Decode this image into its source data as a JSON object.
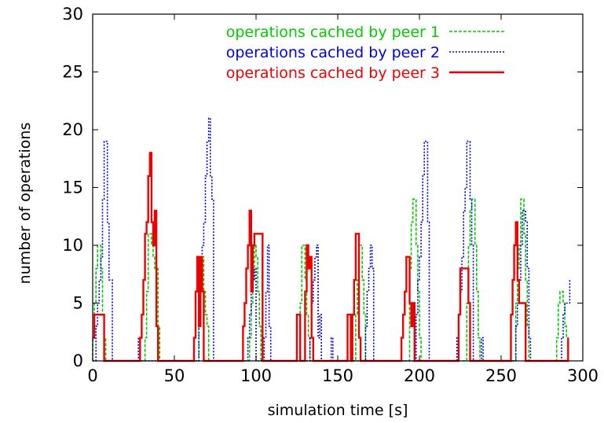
{
  "chart_data": {
    "type": "line",
    "xlabel": "simulation time [s]",
    "ylabel": "number of operations",
    "xlim": [
      0,
      300
    ],
    "ylim": [
      0,
      30
    ],
    "xticks": [
      "0",
      "50",
      "100",
      "150",
      "200",
      "250",
      "300"
    ],
    "yticks": [
      "0",
      "5",
      "10",
      "15",
      "20",
      "25",
      "30"
    ],
    "legend_position": "top-right",
    "series": [
      {
        "name": "operations cached by peer 1",
        "color": "#00cc00",
        "style": "dashed",
        "points": [
          [
            0,
            0
          ],
          [
            0,
            2
          ],
          [
            1,
            5
          ],
          [
            2,
            8
          ],
          [
            3,
            10
          ],
          [
            4,
            10
          ],
          [
            5,
            8
          ],
          [
            6,
            4
          ],
          [
            7,
            2
          ],
          [
            8,
            0
          ],
          [
            31,
            0
          ],
          [
            32,
            2
          ],
          [
            33,
            6
          ],
          [
            34,
            11
          ],
          [
            35,
            11
          ],
          [
            36,
            10
          ],
          [
            37,
            9
          ],
          [
            38,
            8
          ],
          [
            39,
            8
          ],
          [
            40,
            3
          ],
          [
            41,
            0
          ],
          [
            64,
            0
          ],
          [
            65,
            4
          ],
          [
            66,
            7
          ],
          [
            67,
            9
          ],
          [
            68,
            6
          ],
          [
            69,
            4
          ],
          [
            70,
            3
          ],
          [
            71,
            0
          ],
          [
            95,
            0
          ],
          [
            96,
            2
          ],
          [
            97,
            5
          ],
          [
            98,
            7
          ],
          [
            99,
            10
          ],
          [
            100,
            9
          ],
          [
            101,
            6
          ],
          [
            102,
            3
          ],
          [
            103,
            0
          ],
          [
            126,
            0
          ],
          [
            127,
            5
          ],
          [
            128,
            10
          ],
          [
            129,
            10
          ],
          [
            130,
            7
          ],
          [
            131,
            4
          ],
          [
            132,
            2
          ],
          [
            133,
            0
          ],
          [
            160,
            0
          ],
          [
            161,
            4
          ],
          [
            162,
            7
          ],
          [
            163,
            10
          ],
          [
            164,
            10
          ],
          [
            165,
            7
          ],
          [
            166,
            4
          ],
          [
            167,
            0
          ],
          [
            193,
            0
          ],
          [
            194,
            8
          ],
          [
            195,
            12
          ],
          [
            196,
            14
          ],
          [
            197,
            14
          ],
          [
            198,
            10
          ],
          [
            199,
            6
          ],
          [
            200,
            2
          ],
          [
            201,
            0
          ],
          [
            228,
            0
          ],
          [
            229,
            5
          ],
          [
            230,
            10
          ],
          [
            231,
            13
          ],
          [
            232,
            14
          ],
          [
            233,
            14
          ],
          [
            234,
            10
          ],
          [
            235,
            6
          ],
          [
            236,
            2
          ],
          [
            237,
            0
          ],
          [
            258,
            0
          ],
          [
            259,
            5
          ],
          [
            260,
            8
          ],
          [
            261,
            10
          ],
          [
            262,
            14
          ],
          [
            263,
            14
          ],
          [
            264,
            11
          ],
          [
            265,
            7
          ],
          [
            266,
            3
          ],
          [
            267,
            0
          ],
          [
            283,
            0
          ],
          [
            284,
            2
          ],
          [
            285,
            5
          ],
          [
            286,
            6
          ],
          [
            287,
            6
          ],
          [
            288,
            5
          ],
          [
            289,
            3
          ],
          [
            290,
            2
          ],
          [
            291,
            0
          ]
        ]
      },
      {
        "name": "operations cached by peer 2",
        "color": "#0000dd",
        "style": "dotted",
        "points": [
          [
            0,
            0
          ],
          [
            1,
            0
          ],
          [
            2,
            3
          ],
          [
            3,
            5
          ],
          [
            4,
            7
          ],
          [
            5,
            9
          ],
          [
            6,
            14
          ],
          [
            7,
            19
          ],
          [
            8,
            19
          ],
          [
            9,
            12
          ],
          [
            10,
            7
          ],
          [
            11,
            7
          ],
          [
            12,
            0
          ],
          [
            27,
            0
          ],
          [
            28,
            2
          ],
          [
            29,
            0
          ],
          [
            64,
            0
          ],
          [
            65,
            3
          ],
          [
            66,
            6
          ],
          [
            67,
            10
          ],
          [
            68,
            12
          ],
          [
            69,
            16
          ],
          [
            70,
            19
          ],
          [
            71,
            21
          ],
          [
            72,
            16
          ],
          [
            73,
            14
          ],
          [
            74,
            0
          ],
          [
            94,
            0
          ],
          [
            95,
            2
          ],
          [
            96,
            4
          ],
          [
            97,
            6
          ],
          [
            98,
            7
          ],
          [
            99,
            8
          ],
          [
            100,
            0
          ],
          [
            104,
            0
          ],
          [
            105,
            2
          ],
          [
            106,
            6
          ],
          [
            107,
            10
          ],
          [
            108,
            3
          ],
          [
            109,
            0
          ],
          [
            132,
            0
          ],
          [
            133,
            2
          ],
          [
            134,
            5
          ],
          [
            135,
            7
          ],
          [
            136,
            9
          ],
          [
            137,
            10
          ],
          [
            138,
            2
          ],
          [
            139,
            4
          ],
          [
            140,
            0
          ],
          [
            145,
            0
          ],
          [
            146,
            2
          ],
          [
            147,
            0
          ],
          [
            166,
            0
          ],
          [
            167,
            3
          ],
          [
            168,
            6
          ],
          [
            169,
            8
          ],
          [
            170,
            10
          ],
          [
            171,
            8
          ],
          [
            172,
            0
          ],
          [
            197,
            0
          ],
          [
            198,
            4
          ],
          [
            199,
            7
          ],
          [
            200,
            9
          ],
          [
            201,
            12
          ],
          [
            202,
            16
          ],
          [
            203,
            19
          ],
          [
            204,
            19
          ],
          [
            205,
            12
          ],
          [
            206,
            0
          ],
          [
            222,
            0
          ],
          [
            223,
            2
          ],
          [
            224,
            4
          ],
          [
            225,
            6
          ],
          [
            226,
            9
          ],
          [
            227,
            13
          ],
          [
            228,
            15
          ],
          [
            229,
            19
          ],
          [
            230,
            19
          ],
          [
            231,
            14
          ],
          [
            232,
            10
          ],
          [
            233,
            0
          ],
          [
            237,
            0
          ],
          [
            238,
            2
          ],
          [
            239,
            0
          ],
          [
            258,
            0
          ],
          [
            259,
            3
          ],
          [
            260,
            5
          ],
          [
            261,
            7
          ],
          [
            262,
            10
          ],
          [
            263,
            13
          ],
          [
            264,
            13
          ],
          [
            265,
            12
          ],
          [
            266,
            8
          ],
          [
            267,
            2
          ],
          [
            268,
            0
          ],
          [
            286,
            0
          ],
          [
            287,
            2
          ],
          [
            288,
            4
          ],
          [
            289,
            5
          ],
          [
            290,
            5
          ],
          [
            291,
            5
          ],
          [
            292,
            7
          ]
        ]
      },
      {
        "name": "operations cached by peer 3",
        "color": "#ee0000",
        "style": "solid",
        "points": [
          [
            0,
            2
          ],
          [
            1,
            4
          ],
          [
            3,
            4
          ],
          [
            6,
            4
          ],
          [
            7,
            0
          ],
          [
            28,
            0
          ],
          [
            29,
            2
          ],
          [
            30,
            4
          ],
          [
            31,
            7
          ],
          [
            32,
            11
          ],
          [
            33,
            12
          ],
          [
            34,
            16
          ],
          [
            35,
            18
          ],
          [
            36,
            12
          ],
          [
            37,
            10
          ],
          [
            38,
            13
          ],
          [
            39,
            3
          ],
          [
            40,
            0
          ],
          [
            61,
            0
          ],
          [
            62,
            2
          ],
          [
            63,
            6
          ],
          [
            64,
            9
          ],
          [
            65,
            3
          ],
          [
            66,
            9
          ],
          [
            67,
            6
          ],
          [
            68,
            0
          ],
          [
            91,
            0
          ],
          [
            92,
            3
          ],
          [
            93,
            5
          ],
          [
            94,
            8
          ],
          [
            95,
            10
          ],
          [
            96,
            13
          ],
          [
            97,
            6
          ],
          [
            98,
            10
          ],
          [
            99,
            11
          ],
          [
            101,
            11
          ],
          [
            103,
            11
          ],
          [
            104,
            0
          ],
          [
            124,
            0
          ],
          [
            125,
            4
          ],
          [
            126,
            4
          ],
          [
            127,
            0
          ],
          [
            129,
            0
          ],
          [
            130,
            6
          ],
          [
            131,
            10
          ],
          [
            132,
            8
          ],
          [
            133,
            9
          ],
          [
            134,
            2
          ],
          [
            135,
            0
          ],
          [
            155,
            0
          ],
          [
            156,
            4
          ],
          [
            157,
            4
          ],
          [
            158,
            0
          ],
          [
            159,
            4
          ],
          [
            160,
            7
          ],
          [
            161,
            11
          ],
          [
            162,
            11
          ],
          [
            163,
            2
          ],
          [
            164,
            0
          ],
          [
            188,
            0
          ],
          [
            189,
            2
          ],
          [
            190,
            4
          ],
          [
            191,
            6
          ],
          [
            192,
            9
          ],
          [
            193,
            9
          ],
          [
            194,
            5
          ],
          [
            195,
            3
          ],
          [
            196,
            5
          ],
          [
            197,
            0
          ],
          [
            223,
            0
          ],
          [
            224,
            4
          ],
          [
            225,
            8
          ],
          [
            227,
            8
          ],
          [
            229,
            8
          ],
          [
            230,
            5
          ],
          [
            231,
            0
          ],
          [
            255,
            0
          ],
          [
            256,
            4
          ],
          [
            257,
            7
          ],
          [
            258,
            10
          ],
          [
            259,
            12
          ],
          [
            260,
            7
          ],
          [
            261,
            5
          ],
          [
            262,
            5
          ],
          [
            264,
            5
          ],
          [
            265,
            0
          ],
          [
            290,
            0
          ],
          [
            291,
            2
          ]
        ]
      }
    ]
  }
}
